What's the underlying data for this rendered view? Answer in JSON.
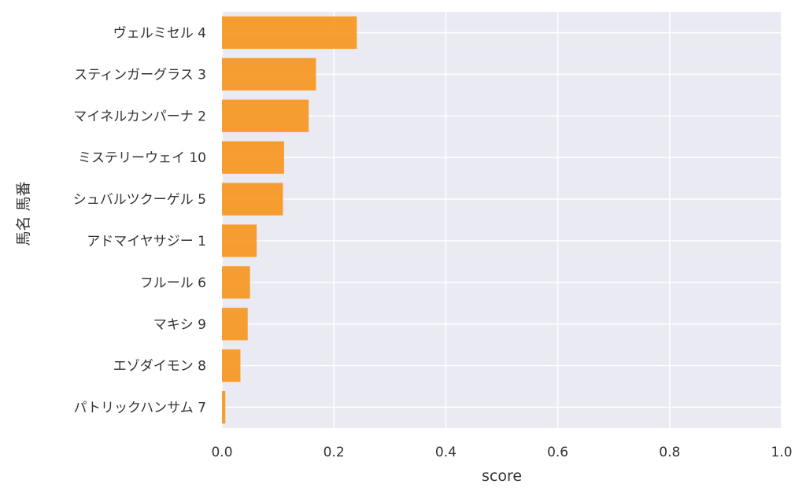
{
  "chart_data": {
    "type": "bar",
    "orientation": "horizontal",
    "categories": [
      "ヴェルミセル 4",
      "スティンガーグラス 3",
      "マイネルカンパーナ 2",
      "ミステリーウェイ 10",
      "シュバルツクーゲル 5",
      "アドマイヤサジー 1",
      "フルール 6",
      "マキシ 9",
      "エゾダイモン 8",
      "パトリックハンサム 7"
    ],
    "values": [
      0.241,
      0.168,
      0.155,
      0.111,
      0.109,
      0.062,
      0.05,
      0.046,
      0.033,
      0.006
    ],
    "xlabel": "score",
    "ylabel": "馬名 馬番",
    "xlim": [
      0.0,
      1.0
    ],
    "xticks": [
      "0.0",
      "0.2",
      "0.4",
      "0.6",
      "0.8",
      "1.0"
    ],
    "grid": true,
    "colors": {
      "bar": "#f7951d",
      "plot_background": "#eaeaf2",
      "grid": "#ffffff"
    }
  }
}
